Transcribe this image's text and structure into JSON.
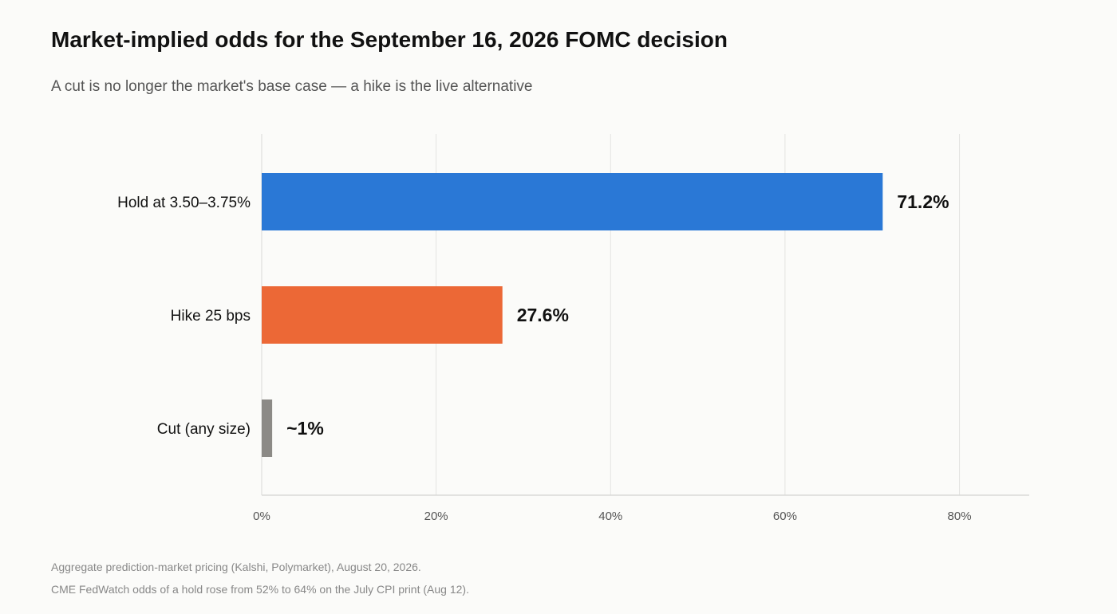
{
  "title": "Market-implied odds for the September 16, 2026 FOMC decision",
  "subtitle": "A cut is no longer the market's base case — a hike is the live alternative",
  "footnotes": [
    "Aggregate prediction-market pricing (Kalshi, Polymarket), August 20, 2026.",
    "CME FedWatch odds of a hold rose from 52% to 64% on the July CPI print (Aug 12)."
  ],
  "chart_data": {
    "type": "bar",
    "orientation": "horizontal",
    "categories": [
      "Hold at 3.50–3.75%",
      "Hike 25 bps",
      "Cut (any size)"
    ],
    "values": [
      71.2,
      27.6,
      1.2
    ],
    "value_labels": [
      "71.2%",
      "27.6%",
      "~1%"
    ],
    "colors": [
      "#2a78d6",
      "#ec6836",
      "#8c8a86"
    ],
    "xlim": [
      0,
      88
    ],
    "xticks": [
      0,
      20,
      40,
      60,
      80
    ],
    "xtick_labels": [
      "0%",
      "20%",
      "40%",
      "60%",
      "80%"
    ],
    "grid": true,
    "title": "",
    "xlabel": "",
    "ylabel": ""
  }
}
